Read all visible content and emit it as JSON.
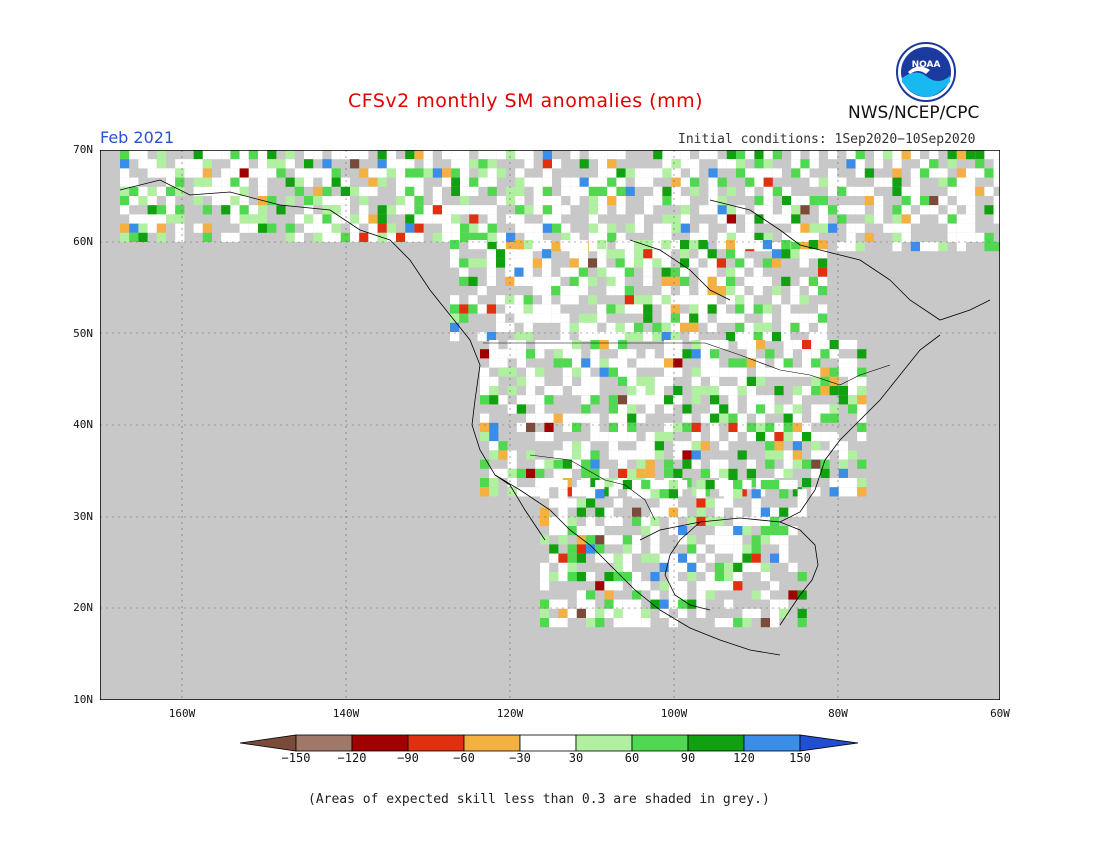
{
  "header": {
    "title": "CFSv2 monthly SM anomalies (mm)",
    "month": "Feb 2021",
    "initial_conditions": "Initial conditions: 1Sep2020−10Sep2020",
    "agency": "NWS/NCEP/CPC",
    "logo_text": "NOAA"
  },
  "map": {
    "lat_labels": [
      "70N",
      "60N",
      "50N",
      "40N",
      "30N",
      "20N",
      "10N"
    ],
    "lon_labels": [
      "160W",
      "140W",
      "120W",
      "100W",
      "80W",
      "60W"
    ],
    "colors": {
      "land_unshaded": "#ffffff",
      "skill_grey": "#c8c8c8",
      "ocean": "#c8c8c8"
    }
  },
  "colorbar": {
    "labels": [
      "−150",
      "−120",
      "−90",
      "−60",
      "−30",
      "30",
      "60",
      "90",
      "120",
      "150"
    ],
    "colors": [
      "#7a4a3a",
      "#a0786a",
      "#a00000",
      "#e03010",
      "#f4b040",
      "#ffffff",
      "#b0f0a0",
      "#50d850",
      "#10a010",
      "#3a8ee8",
      "#2050d0"
    ]
  },
  "footer": {
    "note": "(Areas of expected skill less than 0.3 are shaded in grey.)"
  }
}
